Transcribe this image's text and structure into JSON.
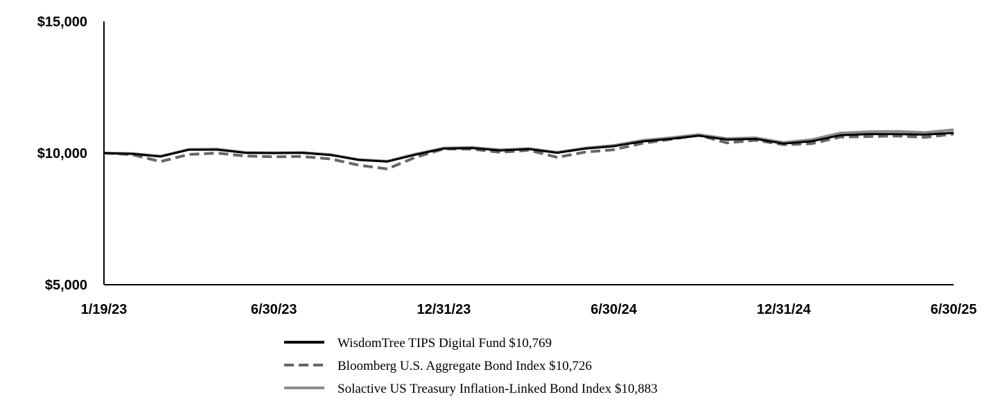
{
  "chart_data": {
    "type": "line",
    "title": "",
    "xlabel": "",
    "ylabel": "",
    "x_tick_labels": [
      "1/19/23",
      "6/30/23",
      "12/31/23",
      "6/30/24",
      "12/31/24",
      "6/30/25"
    ],
    "y_tick_labels": [
      "$15,000",
      "$10,000",
      "$5,000"
    ],
    "y_tick_values": [
      15000,
      10000,
      5000
    ],
    "ylim": [
      5000,
      15000
    ],
    "grid": false,
    "legend_position": "bottom",
    "series": [
      {
        "name": "WisdomTree TIPS Digital Fund $10,769",
        "color": "#000000",
        "style": "solid",
        "values": [
          10000,
          9970,
          9870,
          10130,
          10130,
          10010,
          10000,
          10010,
          9930,
          9740,
          9680,
          9940,
          10170,
          10190,
          10100,
          10150,
          10010,
          10170,
          10260,
          10440,
          10540,
          10660,
          10510,
          10540,
          10360,
          10450,
          10680,
          10720,
          10720,
          10700,
          10769
        ]
      },
      {
        "name": "Bloomberg U.S. Aggregate Bond Index $10,726",
        "color": "#666666",
        "style": "dashed",
        "values": [
          10000,
          9940,
          9680,
          9950,
          10000,
          9890,
          9860,
          9870,
          9780,
          9540,
          9400,
          9840,
          10160,
          10150,
          10030,
          10110,
          9840,
          10040,
          10130,
          10370,
          10520,
          10680,
          10390,
          10490,
          10320,
          10360,
          10610,
          10630,
          10650,
          10600,
          10726
        ]
      },
      {
        "name": "Solactive US Treasury Inflation-Linked Bond Index $10,883",
        "color": "#8c8c8c",
        "style": "solid",
        "values": [
          10000,
          9980,
          9880,
          10140,
          10150,
          10020,
          10010,
          10020,
          9940,
          9750,
          9690,
          9960,
          10190,
          10210,
          10120,
          10170,
          10030,
          10190,
          10290,
          10480,
          10580,
          10700,
          10550,
          10580,
          10400,
          10510,
          10760,
          10810,
          10820,
          10780,
          10883
        ]
      }
    ]
  }
}
